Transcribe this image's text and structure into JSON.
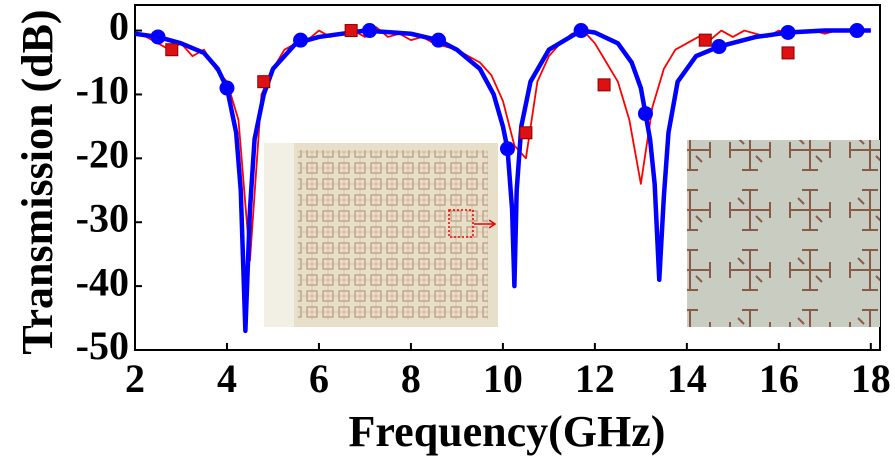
{
  "chart_data": {
    "type": "line",
    "xlabel": "Frequency(GHz)",
    "ylabel": "Transmission (dB)",
    "xlim": [
      2,
      18.2
    ],
    "ylim": [
      -50,
      4
    ],
    "xticks": [
      2,
      4,
      6,
      8,
      10,
      12,
      14,
      16,
      18
    ],
    "yticks": [
      0,
      -10,
      -20,
      -30,
      -40,
      -50
    ],
    "series": [
      {
        "color": "#ff0000",
        "mode": "line",
        "x": [
          2,
          2.25,
          2.5,
          2.75,
          3,
          3.25,
          3.5,
          3.75,
          4,
          4.25,
          4.5,
          4.75,
          5,
          5.25,
          5.5,
          5.75,
          6,
          6.25,
          6.5,
          6.75,
          7,
          7.25,
          7.5,
          7.75,
          8,
          8.25,
          8.5,
          8.75,
          9,
          9.25,
          9.5,
          9.75,
          10,
          10.25,
          10.5,
          10.75,
          11,
          11.25,
          11.5,
          11.75,
          12,
          12.25,
          12.5,
          12.75,
          13,
          13.25,
          13.5,
          13.75,
          14,
          14.25,
          14.5,
          14.75,
          15,
          15.25,
          15.5,
          15.75,
          16,
          16.25,
          16.5,
          16.75,
          17,
          17.25,
          17.5,
          17.75,
          18
        ],
        "values": [
          -0.5,
          -1,
          -2,
          -3,
          -2,
          -4,
          -3,
          -6,
          -8,
          -14,
          -36,
          -10,
          -6,
          -3,
          -2,
          -1.5,
          0,
          -1,
          -0.5,
          0,
          -1,
          0.5,
          -1,
          -0.5,
          -1.5,
          -1,
          -2,
          -2.5,
          -3,
          -4,
          -5,
          -7,
          -11,
          -18,
          -20,
          -8,
          -4,
          -2,
          -0.5,
          0,
          -2,
          -5,
          -8,
          -14,
          -24,
          -12,
          -6,
          -3,
          -2,
          -1,
          -1.5,
          0,
          -1,
          0,
          -0.5,
          -1,
          0,
          -0.5,
          0,
          0,
          -0.5,
          0,
          0,
          0,
          0
        ]
      },
      {
        "color": "#0000ff",
        "mode": "line",
        "x": [
          2,
          2.5,
          3,
          3.5,
          3.8,
          4.0,
          4.2,
          4.3,
          4.4,
          4.5,
          4.6,
          4.8,
          5.0,
          5.5,
          6,
          7,
          8,
          8.6,
          9,
          9.5,
          9.8,
          10.0,
          10.1,
          10.2,
          10.25,
          10.3,
          10.4,
          10.6,
          11,
          11.7,
          12,
          12.5,
          12.8,
          13.0,
          13.1,
          13.2,
          13.3,
          13.4,
          13.5,
          13.6,
          13.8,
          14.2,
          14.7,
          15.5,
          16.2,
          17,
          17.7,
          18
        ],
        "values": [
          -0.5,
          -1,
          -2,
          -3.5,
          -6,
          -9,
          -16,
          -25,
          -47,
          -28,
          -17,
          -10,
          -6,
          -2,
          -1,
          0,
          -0.5,
          -1.5,
          -3,
          -6,
          -10,
          -15,
          -18.5,
          -28,
          -40,
          -25,
          -15,
          -8,
          -3,
          0,
          -0.3,
          -2,
          -5,
          -9,
          -13,
          -17,
          -24,
          -39,
          -26,
          -16,
          -8,
          -4,
          -2.5,
          -1,
          -0.3,
          0,
          0,
          0
        ]
      },
      {
        "color": "#dd1111",
        "mode": "square",
        "x": [
          2.8,
          4.8,
          6.7,
          10.5,
          12.2,
          14.4,
          16.2
        ],
        "values": [
          -3,
          -8,
          0,
          -16,
          -8.5,
          -1.5,
          -3.5
        ]
      },
      {
        "color": "#0000ff",
        "mode": "circle",
        "x": [
          2.5,
          4.0,
          5.6,
          7.1,
          8.6,
          10.1,
          11.7,
          13.1,
          14.7,
          16.2,
          17.7
        ],
        "values": [
          -1,
          -9,
          -1.5,
          0,
          -1.5,
          -18.5,
          0,
          -13,
          -2.5,
          -0.3,
          0
        ]
      }
    ]
  }
}
